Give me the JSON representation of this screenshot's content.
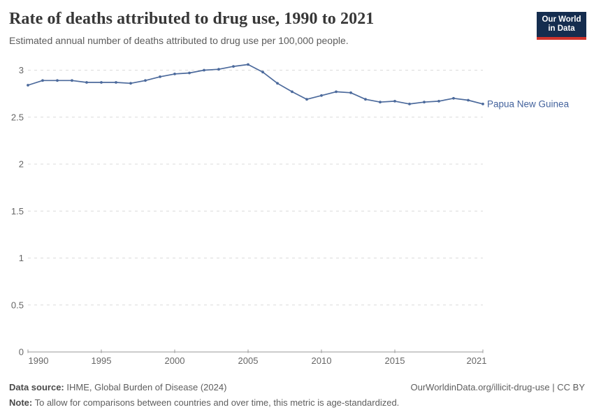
{
  "header": {
    "title": "Rate of deaths attributed to drug use, 1990 to 2021",
    "subtitle": "Estimated annual number of deaths attributed to drug use per 100,000 people."
  },
  "logo": {
    "line1": "Our World",
    "line2": "in Data"
  },
  "footer": {
    "source_label": "Data source:",
    "source_text": " IHME, Global Burden of Disease (2024)",
    "url_text": "OurWorldinData.org/illicit-drug-use | CC BY",
    "note_label": "Note:",
    "note_text": " To allow for comparisons between countries and over time, this metric is age-standardized."
  },
  "colors": {
    "line": "#4c6a9c",
    "series_label": "#44639d",
    "grid": "#dcdcdc",
    "axis": "#9a9a9a",
    "tick_text": "#666666",
    "title": "#373737",
    "subtitle": "#5c5c5c",
    "footer": "#5e5e5e",
    "logo_bg": "#152d4f",
    "logo_red": "#d0342c"
  },
  "chart_data": {
    "type": "line",
    "title": "Rate of deaths attributed to drug use, 1990 to 2021",
    "subtitle": "Estimated annual number of deaths attributed to drug use per 100,000 people.",
    "xlabel": "",
    "ylabel": "",
    "xlim": [
      1990,
      2021
    ],
    "ylim": [
      0,
      3
    ],
    "grid": "dashed horizontal",
    "legend_position": "end-of-line label",
    "xticks": [
      1990,
      1995,
      2000,
      2005,
      2010,
      2015,
      2021
    ],
    "yticks": [
      0,
      0.5,
      1,
      1.5,
      2,
      2.5,
      3
    ],
    "x": [
      1990,
      1991,
      1992,
      1993,
      1994,
      1995,
      1996,
      1997,
      1998,
      1999,
      2000,
      2001,
      2002,
      2003,
      2004,
      2005,
      2006,
      2007,
      2008,
      2009,
      2010,
      2011,
      2012,
      2013,
      2014,
      2015,
      2016,
      2017,
      2018,
      2019,
      2020,
      2021
    ],
    "series": [
      {
        "name": "Papua New Guinea",
        "color": "#4c6a9c",
        "values": [
          2.84,
          2.89,
          2.89,
          2.89,
          2.87,
          2.87,
          2.87,
          2.86,
          2.89,
          2.93,
          2.96,
          2.97,
          3.0,
          3.01,
          3.04,
          3.06,
          2.98,
          2.86,
          2.77,
          2.69,
          2.73,
          2.77,
          2.76,
          2.69,
          2.66,
          2.67,
          2.64,
          2.66,
          2.67,
          2.7,
          2.68,
          2.64
        ]
      }
    ]
  }
}
